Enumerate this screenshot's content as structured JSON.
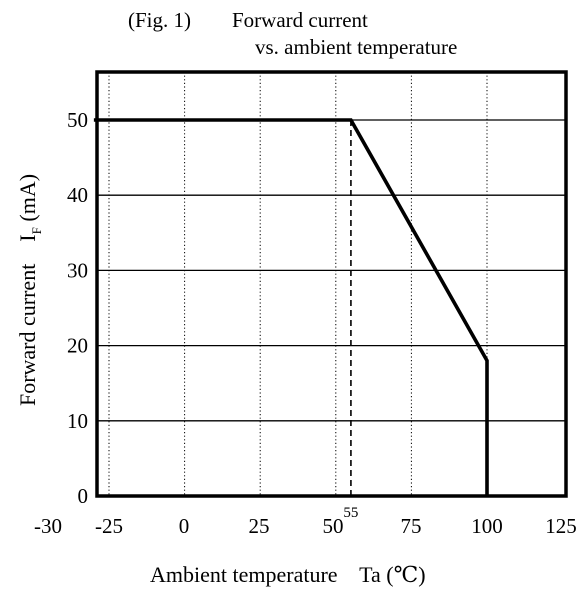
{
  "chart_data": {
    "type": "line",
    "title": {
      "fig_number": "(Fig. 1)",
      "line1": "Forward current",
      "line2": "vs. ambient temperature"
    },
    "xlabel": "Ambient temperature    Ta (℃)",
    "ylabel": {
      "text": "Forward current    I",
      "subscript": "F",
      "unit": " (mA)"
    },
    "xlim": [
      -30,
      125
    ],
    "ylim": [
      0,
      56
    ],
    "x_ticks": [
      {
        "value": -30,
        "label": "-30"
      },
      {
        "value": -25,
        "label": "-25"
      },
      {
        "value": 0,
        "label": "0"
      },
      {
        "value": 25,
        "label": "25"
      },
      {
        "value": 50,
        "label": "50"
      },
      {
        "value": 75,
        "label": "75"
      },
      {
        "value": 100,
        "label": "100"
      },
      {
        "value": 125,
        "label": "125"
      }
    ],
    "x_minor_ticks": [
      {
        "value": 55,
        "label": "55"
      }
    ],
    "y_ticks": [
      {
        "value": 0,
        "label": "0"
      },
      {
        "value": 10,
        "label": "10"
      },
      {
        "value": 20,
        "label": "20"
      },
      {
        "value": 30,
        "label": "30"
      },
      {
        "value": 40,
        "label": "40"
      },
      {
        "value": 50,
        "label": "50"
      }
    ],
    "grid": {
      "horizontal": [
        10,
        20,
        30,
        40,
        50
      ],
      "vertical_dotted": [
        -25,
        0,
        25,
        50,
        75,
        100
      ]
    },
    "series": [
      {
        "x": [
          -30,
          55,
          100,
          100
        ],
        "y": [
          50,
          50,
          18,
          0
        ]
      }
    ],
    "reference_lines": [
      {
        "x": 55,
        "y_from": 0,
        "y_to": 50,
        "style": "dashed"
      }
    ]
  }
}
